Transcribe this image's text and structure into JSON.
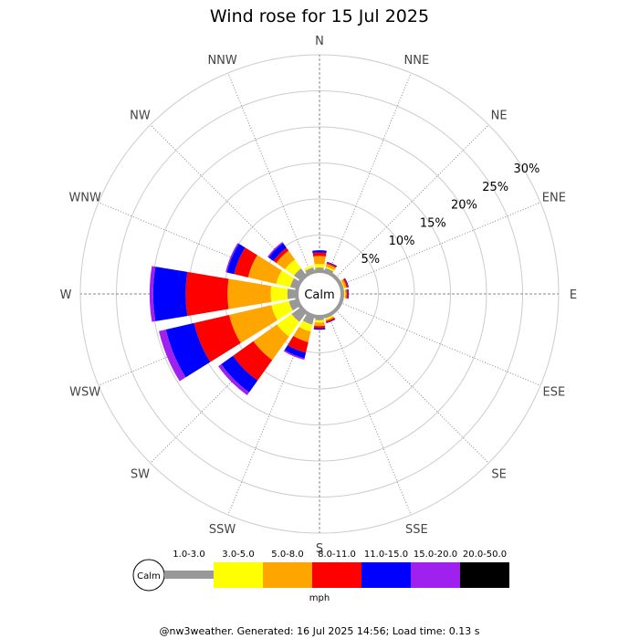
{
  "title": "Wind rose for 15 Jul 2025",
  "footer": "@nw3weather. Generated: 16 Jul 2025 14:56; Load time: 0.13 s",
  "calm_label": "Calm",
  "unit": "mph",
  "colors": {
    "calm": "#999999",
    "bins": [
      "#999999",
      "#ffff00",
      "#ffa500",
      "#ff0000",
      "#0000ff",
      "#a020f0",
      "#000000"
    ],
    "grid": "#888888",
    "ring": "#cccccc"
  },
  "chart_data": {
    "type": "windrose",
    "directions": [
      "N",
      "NNE",
      "NE",
      "ENE",
      "E",
      "ESE",
      "SE",
      "SSE",
      "S",
      "SSW",
      "SW",
      "WSW",
      "W",
      "WNW",
      "NW",
      "NNW"
    ],
    "rings_percent": [
      5,
      10,
      15,
      20,
      25,
      30
    ],
    "ring_labels": [
      "5%",
      "10%",
      "15%",
      "20%",
      "25%",
      "30%"
    ],
    "speed_bins": [
      "1.0-3.0",
      "3.0-5.0",
      "5.0-8.0",
      "8.0-11.0",
      "11.0-15.0",
      "15.0-20.0",
      "20.0-50.0"
    ],
    "series": [
      {
        "name": "1.0-3.0",
        "values": [
          0.5,
          0.5,
          0,
          0.2,
          0.2,
          0.2,
          0.2,
          0.3,
          0.5,
          1.2,
          1.6,
          1.2,
          1.3,
          1.0,
          1.2,
          0.6
        ]
      },
      {
        "name": "3.0-5.0",
        "values": [
          0.5,
          0.2,
          0,
          0.2,
          0.2,
          0,
          0,
          0.2,
          0.3,
          1.0,
          2.5,
          2.5,
          2.3,
          2.0,
          1.5,
          0.3
        ]
      },
      {
        "name": "5.0-8.0",
        "values": [
          1.1,
          0.4,
          0,
          0.3,
          0.2,
          0,
          0,
          0.2,
          0.5,
          1.5,
          4.0,
          6.0,
          6.0,
          4.0,
          1.5,
          0
        ]
      },
      {
        "name": "8.0-11.0",
        "values": [
          0.5,
          0.2,
          0,
          0.2,
          0.2,
          0,
          0,
          0.2,
          0.3,
          1.5,
          3.5,
          5.0,
          5.8,
          2.0,
          0.5,
          0
        ]
      },
      {
        "name": "11.0-15.0",
        "values": [
          0.3,
          0.1,
          0,
          0.1,
          0.1,
          0,
          0,
          0.1,
          0.2,
          0.8,
          2.0,
          4.0,
          4.5,
          1.0,
          0.8,
          0
        ]
      },
      {
        "name": "15.0-20.0",
        "values": [
          0,
          0,
          0,
          0,
          0,
          0,
          0,
          0,
          0,
          0.2,
          0.5,
          1.0,
          0.5,
          0.2,
          0.2,
          0
        ]
      },
      {
        "name": "20.0-50.0",
        "values": [
          0,
          0,
          0,
          0,
          0,
          0,
          0,
          0,
          0,
          0,
          0,
          0,
          0,
          0,
          0,
          0
        ]
      }
    ]
  }
}
